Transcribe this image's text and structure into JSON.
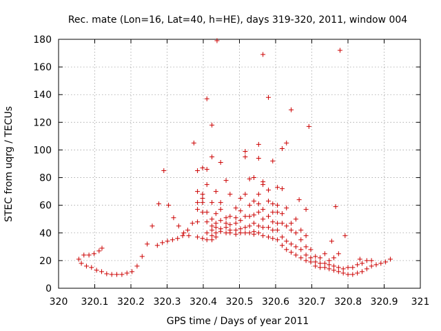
{
  "chart_data": {
    "type": "scatter",
    "title": "Rec. mate (Lon=16, Lat=40, h=HE), days 319-320, 2011, window 004",
    "xlabel": "GPS time / Days of year 2011",
    "ylabel": "STEC from uqrg / TECUs",
    "xlim": [
      320,
      321
    ],
    "ylim": [
      0,
      180
    ],
    "x_ticks": [
      320,
      320.1,
      320.2,
      320.3,
      320.4,
      320.5,
      320.6,
      320.7,
      320.8,
      320.9,
      321
    ],
    "x_tick_labels": [
      "320",
      "320.1",
      "320.2",
      "320.3",
      "320.4",
      "320.5",
      "320.6",
      "320.7",
      "320.8",
      "320.9",
      "321"
    ],
    "y_ticks": [
      0,
      20,
      40,
      60,
      80,
      100,
      120,
      140,
      160,
      180
    ],
    "y_tick_labels": [
      "0",
      "20",
      "40",
      "60",
      "80",
      "100",
      "120",
      "140",
      "160",
      "180"
    ],
    "grid": true,
    "marker": "+",
    "color": "#cc0000",
    "series": [
      {
        "name": "STEC",
        "points": [
          [
            320.056,
            21
          ],
          [
            320.063,
            18
          ],
          [
            320.07,
            24
          ],
          [
            320.077,
            16
          ],
          [
            320.084,
            24
          ],
          [
            320.091,
            15
          ],
          [
            320.098,
            25
          ],
          [
            320.105,
            13
          ],
          [
            320.112,
            27
          ],
          [
            320.119,
            12
          ],
          [
            320.12,
            29
          ],
          [
            320.133,
            10.5
          ],
          [
            320.147,
            10
          ],
          [
            320.161,
            10
          ],
          [
            320.175,
            10
          ],
          [
            320.189,
            11
          ],
          [
            320.203,
            12
          ],
          [
            320.217,
            16
          ],
          [
            320.231,
            23
          ],
          [
            320.245,
            32
          ],
          [
            320.259,
            45
          ],
          [
            320.273,
            31
          ],
          [
            320.277,
            61
          ],
          [
            320.287,
            33
          ],
          [
            320.291,
            85
          ],
          [
            320.301,
            34
          ],
          [
            320.304,
            60
          ],
          [
            320.315,
            35
          ],
          [
            320.318,
            51
          ],
          [
            320.329,
            36
          ],
          [
            320.332,
            45
          ],
          [
            320.343,
            38
          ],
          [
            320.346,
            40
          ],
          [
            320.357,
            42
          ],
          [
            320.36,
            38
          ],
          [
            320.37,
            47
          ],
          [
            320.374,
            105
          ],
          [
            320.384,
            37
          ],
          [
            320.384,
            85
          ],
          [
            320.384,
            70
          ],
          [
            320.384,
            57
          ],
          [
            320.384,
            62
          ],
          [
            320.384,
            48
          ],
          [
            320.398,
            36
          ],
          [
            320.398,
            55
          ],
          [
            320.398,
            62
          ],
          [
            320.398,
            65
          ],
          [
            320.398,
            68
          ],
          [
            320.398,
            87
          ],
          [
            320.41,
            35
          ],
          [
            320.41,
            40
          ],
          [
            320.41,
            48
          ],
          [
            320.41,
            55
          ],
          [
            320.41,
            75
          ],
          [
            320.41,
            86
          ],
          [
            320.41,
            137
          ],
          [
            320.424,
            35
          ],
          [
            320.424,
            38
          ],
          [
            320.424,
            42
          ],
          [
            320.424,
            45
          ],
          [
            320.424,
            50
          ],
          [
            320.424,
            62
          ],
          [
            320.424,
            95
          ],
          [
            320.424,
            118
          ],
          [
            320.435,
            37
          ],
          [
            320.435,
            40
          ],
          [
            320.435,
            44
          ],
          [
            320.435,
            47
          ],
          [
            320.435,
            54
          ],
          [
            320.435,
            70
          ],
          [
            320.438,
            179
          ],
          [
            320.448,
            41
          ],
          [
            320.448,
            43
          ],
          [
            320.448,
            49
          ],
          [
            320.448,
            57
          ],
          [
            320.448,
            62
          ],
          [
            320.448,
            91
          ],
          [
            320.463,
            40
          ],
          [
            320.463,
            44
          ],
          [
            320.463,
            47
          ],
          [
            320.463,
            51
          ],
          [
            320.463,
            78
          ],
          [
            320.474,
            40
          ],
          [
            320.474,
            42
          ],
          [
            320.474,
            46
          ],
          [
            320.474,
            52
          ],
          [
            320.474,
            68
          ],
          [
            320.49,
            39
          ],
          [
            320.49,
            42
          ],
          [
            320.49,
            47
          ],
          [
            320.49,
            51
          ],
          [
            320.49,
            58
          ],
          [
            320.503,
            40
          ],
          [
            320.503,
            43
          ],
          [
            320.503,
            49
          ],
          [
            320.503,
            56
          ],
          [
            320.503,
            65
          ],
          [
            320.516,
            40
          ],
          [
            320.516,
            44
          ],
          [
            320.516,
            52
          ],
          [
            320.516,
            68
          ],
          [
            320.516,
            95
          ],
          [
            320.516,
            99
          ],
          [
            320.528,
            40
          ],
          [
            320.528,
            45
          ],
          [
            320.528,
            52
          ],
          [
            320.528,
            60
          ],
          [
            320.528,
            79
          ],
          [
            320.54,
            39
          ],
          [
            320.54,
            41
          ],
          [
            320.54,
            47
          ],
          [
            320.54,
            53
          ],
          [
            320.54,
            63
          ],
          [
            320.54,
            80
          ],
          [
            320.553,
            40
          ],
          [
            320.553,
            45
          ],
          [
            320.553,
            55
          ],
          [
            320.553,
            61
          ],
          [
            320.553,
            68
          ],
          [
            320.553,
            94
          ],
          [
            320.553,
            104
          ],
          [
            320.565,
            38
          ],
          [
            320.565,
            44
          ],
          [
            320.565,
            50
          ],
          [
            320.565,
            57
          ],
          [
            320.565,
            75
          ],
          [
            320.565,
            77
          ],
          [
            320.565,
            169
          ],
          [
            320.58,
            37
          ],
          [
            320.58,
            44
          ],
          [
            320.58,
            52
          ],
          [
            320.58,
            63
          ],
          [
            320.58,
            71
          ],
          [
            320.58,
            138
          ],
          [
            320.592,
            36
          ],
          [
            320.592,
            42
          ],
          [
            320.592,
            48
          ],
          [
            320.592,
            55
          ],
          [
            320.592,
            61
          ],
          [
            320.592,
            92
          ],
          [
            320.605,
            35
          ],
          [
            320.605,
            42
          ],
          [
            320.605,
            47
          ],
          [
            320.605,
            55
          ],
          [
            320.605,
            60
          ],
          [
            320.605,
            73
          ],
          [
            320.618,
            31
          ],
          [
            320.618,
            37
          ],
          [
            320.618,
            47
          ],
          [
            320.618,
            54
          ],
          [
            320.618,
            72
          ],
          [
            320.618,
            101
          ],
          [
            320.63,
            28
          ],
          [
            320.63,
            34
          ],
          [
            320.63,
            45
          ],
          [
            320.63,
            58
          ],
          [
            320.63,
            105
          ],
          [
            320.643,
            26
          ],
          [
            320.643,
            32
          ],
          [
            320.643,
            42
          ],
          [
            320.643,
            47
          ],
          [
            320.643,
            129
          ],
          [
            320.656,
            24
          ],
          [
            320.656,
            30
          ],
          [
            320.656,
            40
          ],
          [
            320.656,
            50
          ],
          [
            320.665,
            64
          ],
          [
            320.67,
            22
          ],
          [
            320.67,
            28
          ],
          [
            320.67,
            35
          ],
          [
            320.67,
            42
          ],
          [
            320.684,
            20
          ],
          [
            320.684,
            24
          ],
          [
            320.684,
            30
          ],
          [
            320.684,
            38
          ],
          [
            320.684,
            57
          ],
          [
            320.692,
            117
          ],
          [
            320.697,
            19
          ],
          [
            320.697,
            22
          ],
          [
            320.697,
            28
          ],
          [
            320.71,
            16
          ],
          [
            320.71,
            19
          ],
          [
            320.71,
            23
          ],
          [
            320.723,
            15
          ],
          [
            320.723,
            18
          ],
          [
            320.723,
            22
          ],
          [
            320.736,
            15
          ],
          [
            320.736,
            18
          ],
          [
            320.736,
            25
          ],
          [
            320.748,
            14
          ],
          [
            320.748,
            17
          ],
          [
            320.748,
            20
          ],
          [
            320.755,
            34
          ],
          [
            320.761,
            13
          ],
          [
            320.761,
            16
          ],
          [
            320.761,
            22
          ],
          [
            320.766,
            59
          ],
          [
            320.774,
            12
          ],
          [
            320.774,
            15
          ],
          [
            320.774,
            25
          ],
          [
            320.778,
            172
          ],
          [
            320.787,
            11
          ],
          [
            320.787,
            14
          ],
          [
            320.792,
            38
          ],
          [
            320.8,
            10
          ],
          [
            320.8,
            15
          ],
          [
            320.813,
            10
          ],
          [
            320.813,
            15
          ],
          [
            320.826,
            11
          ],
          [
            320.826,
            17
          ],
          [
            320.833,
            21
          ],
          [
            320.839,
            12
          ],
          [
            320.839,
            18
          ],
          [
            320.852,
            14
          ],
          [
            320.852,
            20
          ],
          [
            320.865,
            16
          ],
          [
            320.865,
            20
          ],
          [
            320.878,
            17
          ],
          [
            320.891,
            18
          ],
          [
            320.904,
            19
          ],
          [
            320.917,
            21
          ]
        ]
      }
    ]
  }
}
